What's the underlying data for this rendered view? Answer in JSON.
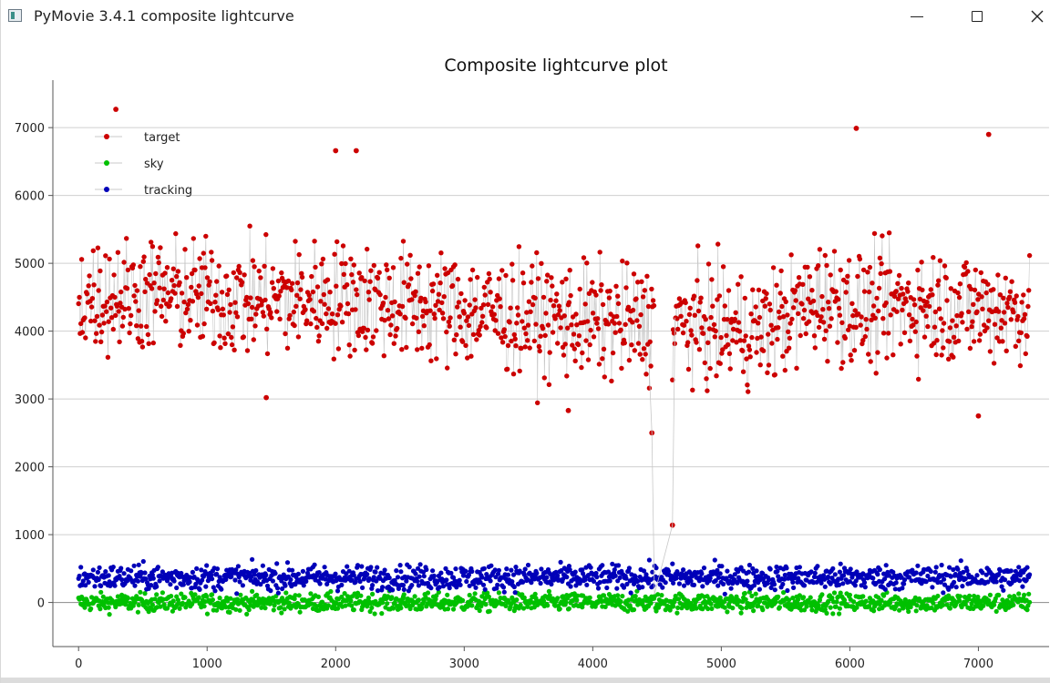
{
  "window": {
    "title": "PyMovie 3.4.1 composite lightcurve",
    "controls": {
      "minimize": "minimize-icon",
      "maximize": "maximize-icon",
      "close": "close-icon"
    }
  },
  "chart_data": {
    "type": "scatter",
    "title": "Composite lightcurve plot",
    "xlabel": "",
    "ylabel": "",
    "xlim": [
      -200,
      7550
    ],
    "ylim": [
      -650,
      7700
    ],
    "x_ticks": [
      0,
      1000,
      2000,
      3000,
      4000,
      5000,
      6000,
      7000
    ],
    "x_tick_labels": [
      "0",
      "1000",
      "2000",
      "3000",
      "4000",
      "5000",
      "6000",
      "7000"
    ],
    "y_ticks": [
      0,
      1000,
      2000,
      3000,
      4000,
      5000,
      6000,
      7000
    ],
    "y_tick_labels": [
      "0",
      "1000",
      "2000",
      "3000",
      "4000",
      "5000",
      "6000",
      "7000"
    ],
    "grid": true,
    "legend_position": "top-left",
    "frame_range": [
      0,
      7400
    ],
    "series": [
      {
        "name": "target",
        "color": "#cc0000",
        "line_color": "#c8c8c8",
        "mean_profile": [
          [
            0,
            4500
          ],
          [
            600,
            4550
          ],
          [
            1400,
            4450
          ],
          [
            2000,
            4500
          ],
          [
            2800,
            4350
          ],
          [
            3500,
            4200
          ],
          [
            4400,
            4100
          ],
          [
            4600,
            4100
          ],
          [
            5300,
            4000
          ],
          [
            5800,
            4500
          ],
          [
            6100,
            4300
          ],
          [
            6500,
            4400
          ],
          [
            7400,
            4300
          ]
        ],
        "spread": 550,
        "gap": [
          4480,
          4620
        ],
        "outliers": [
          [
            290,
            7270
          ],
          [
            2000,
            6660
          ],
          [
            2160,
            6660
          ],
          [
            4460,
            2500
          ],
          [
            4620,
            1140
          ],
          [
            6050,
            6990
          ],
          [
            7080,
            6900
          ],
          [
            7000,
            2750
          ],
          [
            3810,
            2830
          ],
          [
            1460,
            3020
          ]
        ]
      },
      {
        "name": "sky",
        "color": "#00c000",
        "mean": 0,
        "spread": 120
      },
      {
        "name": "tracking",
        "color": "#0000b8",
        "mean": 370,
        "spread": 150
      }
    ]
  }
}
